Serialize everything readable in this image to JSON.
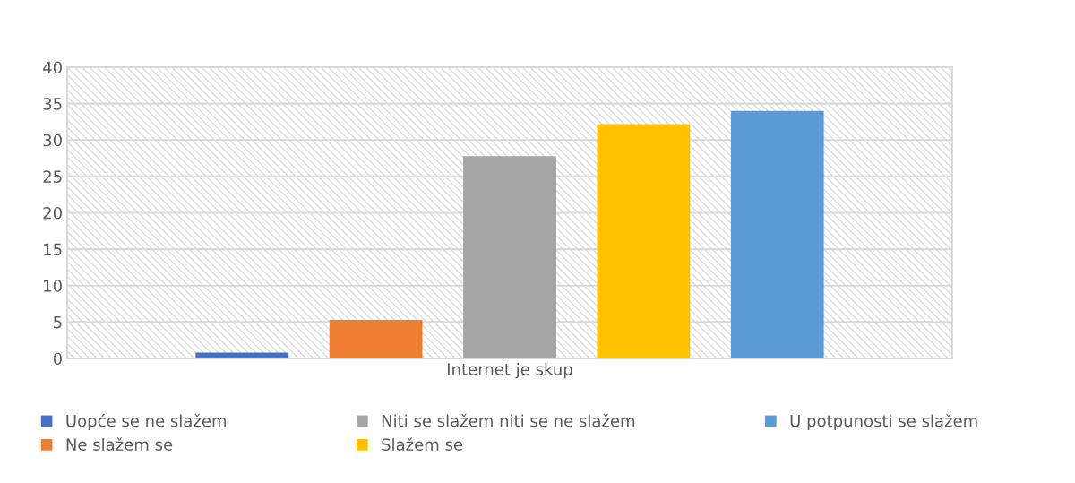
{
  "chart_data": {
    "type": "bar",
    "categories": [
      "Internet je skup"
    ],
    "series": [
      {
        "name": "Uopće se ne slažem",
        "color": "#4472c4",
        "values": [
          0.8
        ]
      },
      {
        "name": "Ne slažem se",
        "color": "#ed7d31",
        "values": [
          5.3
        ]
      },
      {
        "name": "Niti se slažem niti se ne slažem",
        "color": "#a5a5a5",
        "values": [
          27.8
        ]
      },
      {
        "name": "Slažem se",
        "color": "#ffc000",
        "values": [
          32.2
        ]
      },
      {
        "name": "U potpunosti se slažem",
        "color": "#5b9bd5",
        "values": [
          34.0
        ]
      }
    ],
    "ylim": [
      0,
      40
    ],
    "yticks": [
      0,
      5,
      10,
      15,
      20,
      25,
      30,
      35,
      40
    ],
    "grid": "y",
    "legend": "bottom"
  }
}
